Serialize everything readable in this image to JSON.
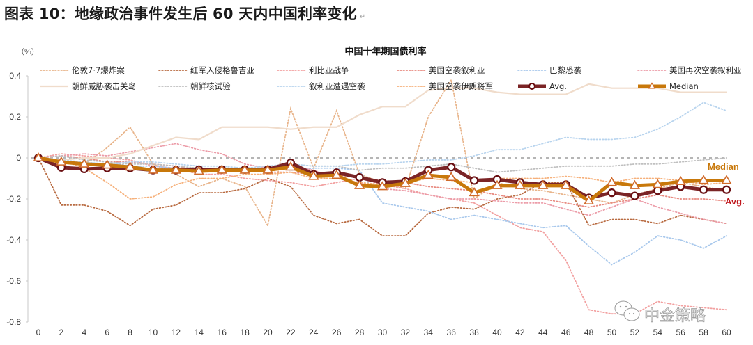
{
  "figure_title": "图表 10：地缘政治事件发生后 60 天内中国利率变化",
  "paragraph_mark": "↵",
  "watermark": "中金策略",
  "chart_data": {
    "type": "line",
    "title": "中国十年期国债利率",
    "ylabel": "（%）",
    "xlabel": "",
    "ylim": [
      -0.8,
      0.4
    ],
    "xlim": [
      0,
      60
    ],
    "yticks": [
      0.4,
      0.2,
      0,
      -0.2,
      -0.4,
      -0.6,
      -0.8
    ],
    "ytick_labels": [
      "0.4",
      "0.2",
      "0",
      "-0.2",
      "-0.4",
      "-0.6",
      "-0.8"
    ],
    "x": [
      0,
      2,
      4,
      6,
      8,
      10,
      12,
      14,
      16,
      18,
      20,
      22,
      24,
      26,
      28,
      30,
      32,
      34,
      36,
      38,
      40,
      42,
      44,
      46,
      48,
      50,
      52,
      54,
      56,
      58,
      60
    ],
    "xtick_labels": [
      "0",
      "2",
      "4",
      "6",
      "8",
      "10",
      "12",
      "14",
      "16",
      "18",
      "20",
      "22",
      "24",
      "26",
      "28",
      "30",
      "32",
      "34",
      "36",
      "38",
      "40",
      "42",
      "44",
      "46",
      "48",
      "50",
      "52",
      "54",
      "56",
      "58",
      "60"
    ],
    "zero_line": true,
    "legend_position": "top",
    "series": [
      {
        "name": "伦敦7·7爆炸案",
        "style": "dotted",
        "color": "#e8b48a",
        "values": [
          0,
          -0.02,
          -0.03,
          0.05,
          0.15,
          -0.03,
          -0.08,
          -0.14,
          -0.1,
          -0.14,
          -0.33,
          0.24,
          -0.05,
          0.23,
          -0.08,
          -0.12,
          -0.15,
          0.2,
          0.38,
          -0.2,
          -0.12,
          -0.15,
          -0.16,
          -0.18,
          -0.2,
          -0.22,
          -0.18,
          -0.15,
          -0.12,
          -0.14,
          -0.16
        ]
      },
      {
        "name": "红军入侵格鲁吉亚",
        "style": "dotted",
        "color": "#b86a40",
        "values": [
          0,
          -0.23,
          -0.23,
          -0.26,
          -0.33,
          -0.25,
          -0.23,
          -0.17,
          -0.17,
          -0.15,
          -0.1,
          -0.14,
          -0.28,
          -0.32,
          -0.3,
          -0.38,
          -0.38,
          -0.27,
          -0.24,
          -0.25,
          -0.2,
          -0.18,
          -0.12,
          -0.12,
          -0.33,
          -0.3,
          -0.3,
          -0.32,
          -0.28,
          -0.3,
          -0.32
        ]
      },
      {
        "name": "利比亚战争",
        "style": "dotted",
        "color": "#f2a0a0",
        "values": [
          0,
          0.02,
          0.01,
          0.0,
          -0.01,
          -0.04,
          -0.05,
          -0.08,
          -0.08,
          -0.1,
          -0.11,
          -0.12,
          -0.14,
          -0.12,
          -0.1,
          -0.13,
          -0.15,
          -0.18,
          -0.2,
          -0.22,
          -0.28,
          -0.34,
          -0.36,
          -0.5,
          -0.74,
          -0.76,
          -0.76,
          -0.7,
          -0.72,
          -0.73,
          -0.74
        ]
      },
      {
        "name": "美国空袭叙利亚",
        "style": "dotted",
        "color": "#e88a80",
        "values": [
          0,
          0.01,
          0.0,
          -0.02,
          -0.02,
          -0.03,
          -0.04,
          -0.06,
          -0.06,
          -0.06,
          -0.07,
          -0.07,
          -0.08,
          -0.08,
          -0.1,
          -0.11,
          -0.12,
          -0.14,
          -0.15,
          -0.16,
          -0.18,
          -0.2,
          -0.2,
          -0.22,
          -0.24,
          -0.22,
          -0.2,
          -0.18,
          -0.2,
          -0.2,
          -0.21
        ]
      },
      {
        "name": "巴黎恐袭",
        "style": "dotted",
        "color": "#a8c8ec",
        "values": [
          0,
          0.01,
          -0.01,
          -0.02,
          -0.04,
          -0.04,
          -0.05,
          -0.06,
          -0.05,
          -0.05,
          -0.05,
          -0.06,
          -0.05,
          -0.05,
          -0.06,
          -0.22,
          -0.24,
          -0.26,
          -0.3,
          -0.28,
          -0.3,
          -0.32,
          -0.34,
          -0.33,
          -0.43,
          -0.52,
          -0.46,
          -0.38,
          -0.4,
          -0.44,
          -0.38
        ]
      },
      {
        "name": "美国再次空袭叙利亚",
        "style": "dotted",
        "color": "#ec9ca8",
        "values": [
          0,
          0.01,
          0.02,
          0.01,
          0.03,
          0.05,
          0.07,
          0.04,
          0.02,
          -0.03,
          -0.05,
          -0.04,
          -0.06,
          -0.1,
          -0.12,
          -0.15,
          -0.16,
          -0.18,
          -0.2,
          -0.2,
          -0.21,
          -0.22,
          -0.22,
          -0.25,
          -0.28,
          -0.24,
          -0.2,
          -0.24,
          -0.27,
          -0.3,
          -0.32
        ]
      },
      {
        "name": "朝鲜威胁袭击关岛",
        "style": "solid",
        "color": "#f0dccb",
        "values": [
          0,
          -0.01,
          0.0,
          0.0,
          0.02,
          0.06,
          0.1,
          0.09,
          0.15,
          0.15,
          0.15,
          0.14,
          0.15,
          0.15,
          0.21,
          0.25,
          0.25,
          0.33,
          0.34,
          0.34,
          0.32,
          0.31,
          0.31,
          0.31,
          0.36,
          0.34,
          0.34,
          0.34,
          0.32,
          0.32,
          0.32
        ]
      },
      {
        "name": "朝鲜核试验",
        "style": "dotted",
        "color": "#bfbfbf",
        "values": [
          0,
          0.01,
          -0.01,
          -0.02,
          -0.03,
          -0.03,
          -0.04,
          -0.05,
          -0.05,
          -0.05,
          -0.04,
          -0.03,
          -0.04,
          -0.04,
          -0.06,
          -0.05,
          -0.05,
          -0.04,
          -0.03,
          -0.05,
          -0.07,
          -0.06,
          -0.05,
          -0.04,
          -0.04,
          -0.04,
          -0.03,
          -0.03,
          -0.02,
          -0.01,
          0.0
        ]
      },
      {
        "name": "叙利亚遭遇空袭",
        "style": "dotted",
        "color": "#b8d4ee",
        "values": [
          0,
          -0.01,
          -0.02,
          -0.03,
          -0.02,
          -0.02,
          -0.03,
          -0.04,
          -0.04,
          -0.05,
          -0.04,
          -0.03,
          -0.04,
          -0.04,
          -0.03,
          -0.03,
          -0.02,
          -0.01,
          -0.01,
          0.01,
          0.04,
          0.04,
          0.07,
          0.1,
          0.09,
          0.09,
          0.1,
          0.14,
          0.2,
          0.27,
          0.23
        ]
      },
      {
        "name": "美国空袭伊朗将军",
        "style": "dotted",
        "color": "#f6b07a",
        "values": [
          0,
          -0.01,
          -0.05,
          -0.12,
          -0.2,
          -0.19,
          -0.13,
          -0.1,
          -0.1,
          -0.08,
          -0.08,
          -0.07,
          -0.1,
          -0.1,
          -0.12,
          -0.13,
          -0.12,
          -0.1,
          -0.11,
          -0.12,
          -0.1,
          -0.1,
          -0.1,
          -0.09,
          -0.1,
          -0.12,
          -0.1,
          -0.1,
          -0.11,
          -0.13,
          -0.12
        ]
      },
      {
        "name": "Avg.",
        "style": "avg",
        "color": "#7b2426",
        "values": [
          0,
          -0.047,
          -0.054,
          -0.05,
          -0.05,
          -0.06,
          -0.06,
          -0.057,
          -0.057,
          -0.057,
          -0.057,
          -0.024,
          -0.08,
          -0.072,
          -0.095,
          -0.12,
          -0.115,
          -0.06,
          -0.045,
          -0.11,
          -0.105,
          -0.12,
          -0.13,
          -0.13,
          -0.195,
          -0.17,
          -0.185,
          -0.16,
          -0.14,
          -0.155,
          -0.155
        ]
      },
      {
        "name": "Median",
        "style": "median",
        "color": "#c8780a",
        "values": [
          0,
          -0.02,
          -0.03,
          -0.035,
          -0.045,
          -0.06,
          -0.06,
          -0.065,
          -0.06,
          -0.06,
          -0.06,
          -0.045,
          -0.09,
          -0.085,
          -0.135,
          -0.14,
          -0.125,
          -0.085,
          -0.095,
          -0.17,
          -0.135,
          -0.135,
          -0.135,
          -0.135,
          -0.21,
          -0.12,
          -0.135,
          -0.13,
          -0.115,
          -0.11,
          -0.11
        ]
      }
    ],
    "end_labels": {
      "median": "Median",
      "avg": "Avg."
    },
    "end_label_colors": {
      "median": "#c8780a",
      "avg": "#c0181e"
    }
  }
}
